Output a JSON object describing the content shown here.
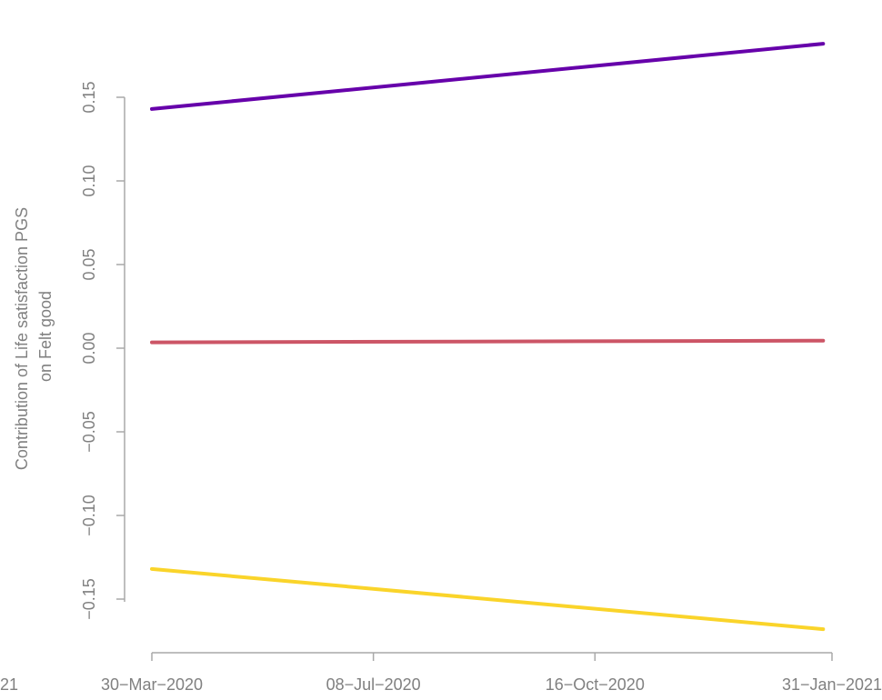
{
  "chart_data": {
    "type": "line",
    "ylabel": [
      "Contribution of Life satisfaction PGS",
      "on Felt good"
    ],
    "xlabel": "",
    "x_ticks": [
      "30−Mar−2020",
      "08−Jul−2020",
      "16−Oct−2020",
      "31−Jan−2021"
    ],
    "x_tick_dates": [
      "2020-03-30",
      "2020-07-08",
      "2020-10-16",
      "2021-01-31"
    ],
    "x_tick_left_clip": "21",
    "y_ticks": [
      "0.15",
      "0.10",
      "0.05",
      "0.00",
      "−0.05",
      "−0.10",
      "−0.15"
    ],
    "y_tick_values": [
      0.15,
      0.1,
      0.05,
      0.0,
      -0.05,
      -0.1,
      -0.15
    ],
    "ylim": [
      -0.16,
      0.15
    ],
    "grid": false,
    "legend": "none",
    "series": [
      {
        "color": "#6600aa",
        "x": [
          "2020-03-30",
          "2021-01-27"
        ],
        "values": [
          0.143,
          0.182
        ]
      },
      {
        "color": "#cc5566",
        "x": [
          "2020-03-30",
          "2021-01-27"
        ],
        "values": [
          0.0035,
          0.0045
        ]
      },
      {
        "color": "#fad42a",
        "x": [
          "2020-03-30",
          "2021-01-27"
        ],
        "values": [
          -0.132,
          -0.168
        ]
      }
    ]
  }
}
